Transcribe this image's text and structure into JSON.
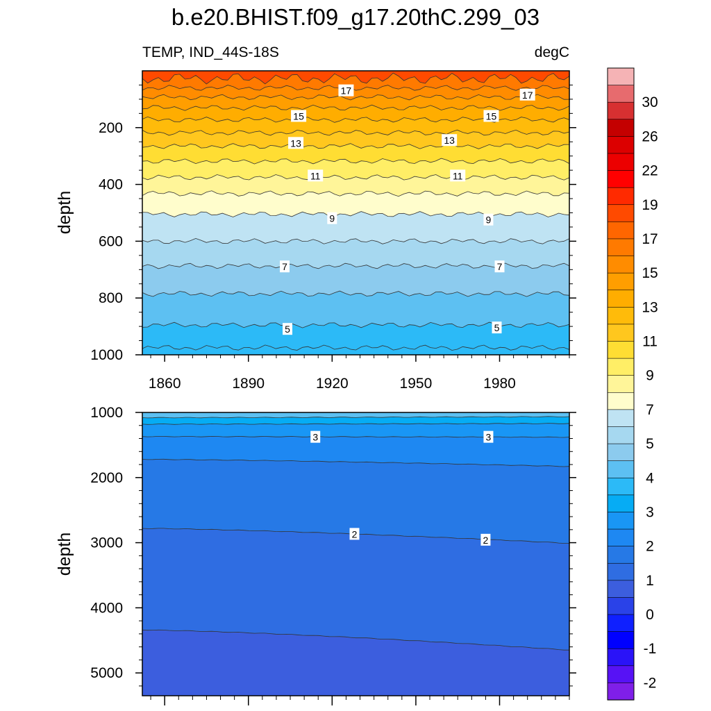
{
  "chart_data": {
    "type": "heatmap",
    "title": "b.e20.BHIST.f09_g17.20thC.299_03",
    "subtitle_left": "TEMP, IND_44S-18S",
    "subtitle_right": "degC",
    "xlabel": "",
    "x_ticks": [
      1860,
      1890,
      1920,
      1950,
      1980
    ],
    "x_range": [
      1852,
      2005
    ],
    "panels": [
      {
        "name": "upper",
        "ylabel": "depth",
        "ylim": [
          0,
          1000
        ],
        "y_ticks": [
          200,
          400,
          600,
          800,
          1000
        ],
        "isotherm_depths": [
          {
            "level": 18,
            "depth": 27
          },
          {
            "level": 17,
            "depth": 60
          },
          {
            "level": 16,
            "depth": 93
          },
          {
            "level": 15,
            "depth": 130
          },
          {
            "level": 14,
            "depth": 172
          },
          {
            "level": 13,
            "depth": 218
          },
          {
            "level": 12,
            "depth": 265
          },
          {
            "level": 11,
            "depth": 318
          },
          {
            "level": 10,
            "depth": 375
          },
          {
            "level": 9,
            "depth": 432
          },
          {
            "level": 8,
            "depth": 505
          },
          {
            "level": 7,
            "depth": 600
          },
          {
            "level": 6,
            "depth": 687
          },
          {
            "level": 5,
            "depth": 785
          },
          {
            "level": 4.5,
            "depth": 895
          },
          {
            "level": 4,
            "depth": 975
          }
        ],
        "contour_labels": [
          {
            "text": "17",
            "x": 1925,
            "depth": 70
          },
          {
            "text": "17",
            "x": 1990,
            "depth": 85
          },
          {
            "text": "15",
            "x": 1908,
            "depth": 160
          },
          {
            "text": "15",
            "x": 1977,
            "depth": 160
          },
          {
            "text": "13",
            "x": 1907,
            "depth": 255
          },
          {
            "text": "13",
            "x": 1962,
            "depth": 245
          },
          {
            "text": "11",
            "x": 1914,
            "depth": 370
          },
          {
            "text": "11",
            "x": 1965,
            "depth": 370
          },
          {
            "text": "9",
            "x": 1920,
            "depth": 520
          },
          {
            "text": "9",
            "x": 1976,
            "depth": 525
          },
          {
            "text": "7",
            "x": 1903,
            "depth": 690
          },
          {
            "text": "7",
            "x": 1980,
            "depth": 690
          },
          {
            "text": "5",
            "x": 1904,
            "depth": 910
          },
          {
            "text": "5",
            "x": 1979,
            "depth": 905
          }
        ]
      },
      {
        "name": "lower",
        "ylabel": "depth",
        "ylim": [
          1000,
          5350
        ],
        "y_ticks": [
          1000,
          2000,
          3000,
          4000,
          5000
        ],
        "isotherm_depths": [
          {
            "level": 3.5,
            "depth_start": 1080,
            "depth_end": 1065
          },
          {
            "level": 3.25,
            "depth_start": 1180,
            "depth_end": 1170
          },
          {
            "level": 3,
            "depth_start": 1370,
            "depth_end": 1380
          },
          {
            "level": 2.5,
            "depth_start": 1720,
            "depth_end": 1830
          },
          {
            "level": 2,
            "depth_start": 2780,
            "depth_end": 3010
          },
          {
            "level": 1.5,
            "depth_start": 4340,
            "depth_end": 4650
          }
        ],
        "contour_labels": [
          {
            "text": "3",
            "x": 1914,
            "depth": 1380
          },
          {
            "text": "3",
            "x": 1976,
            "depth": 1380
          },
          {
            "text": "2",
            "x": 1928,
            "depth": 2870
          },
          {
            "text": "2",
            "x": 1975,
            "depth": 2960
          }
        ]
      }
    ],
    "colorbar": {
      "labels": [
        "30",
        "26",
        "22",
        "19",
        "17",
        "15",
        "13",
        "11",
        "9",
        "7",
        "5",
        "4",
        "3",
        "2",
        "1",
        "0",
        "-1",
        "-2"
      ],
      "colors": [
        "#F5B3B5",
        "#E76B6E",
        "#D73031",
        "#C40000",
        "#DC0000",
        "#EC0000",
        "#FF0000",
        "#FF2A00",
        "#FF4A00",
        "#FF6600",
        "#FF7A00",
        "#FF8C00",
        "#FF9E00",
        "#FFAD00",
        "#FFBB0A",
        "#FFC71E",
        "#FFDD33",
        "#FFEE66",
        "#FFF599",
        "#FFFDCC",
        "#BFE3F3",
        "#A6D8F0",
        "#8CCBEE",
        "#5DC0F2",
        "#2CBAF7",
        "#06ACF4",
        "#1996F5",
        "#1E88F2",
        "#2679E6",
        "#2F6DE2",
        "#3C5EDE",
        "#2A42E8",
        "#0F20FF",
        "#0000FF",
        "#2A13F8",
        "#5712F5",
        "#7F1FE8"
      ]
    }
  }
}
